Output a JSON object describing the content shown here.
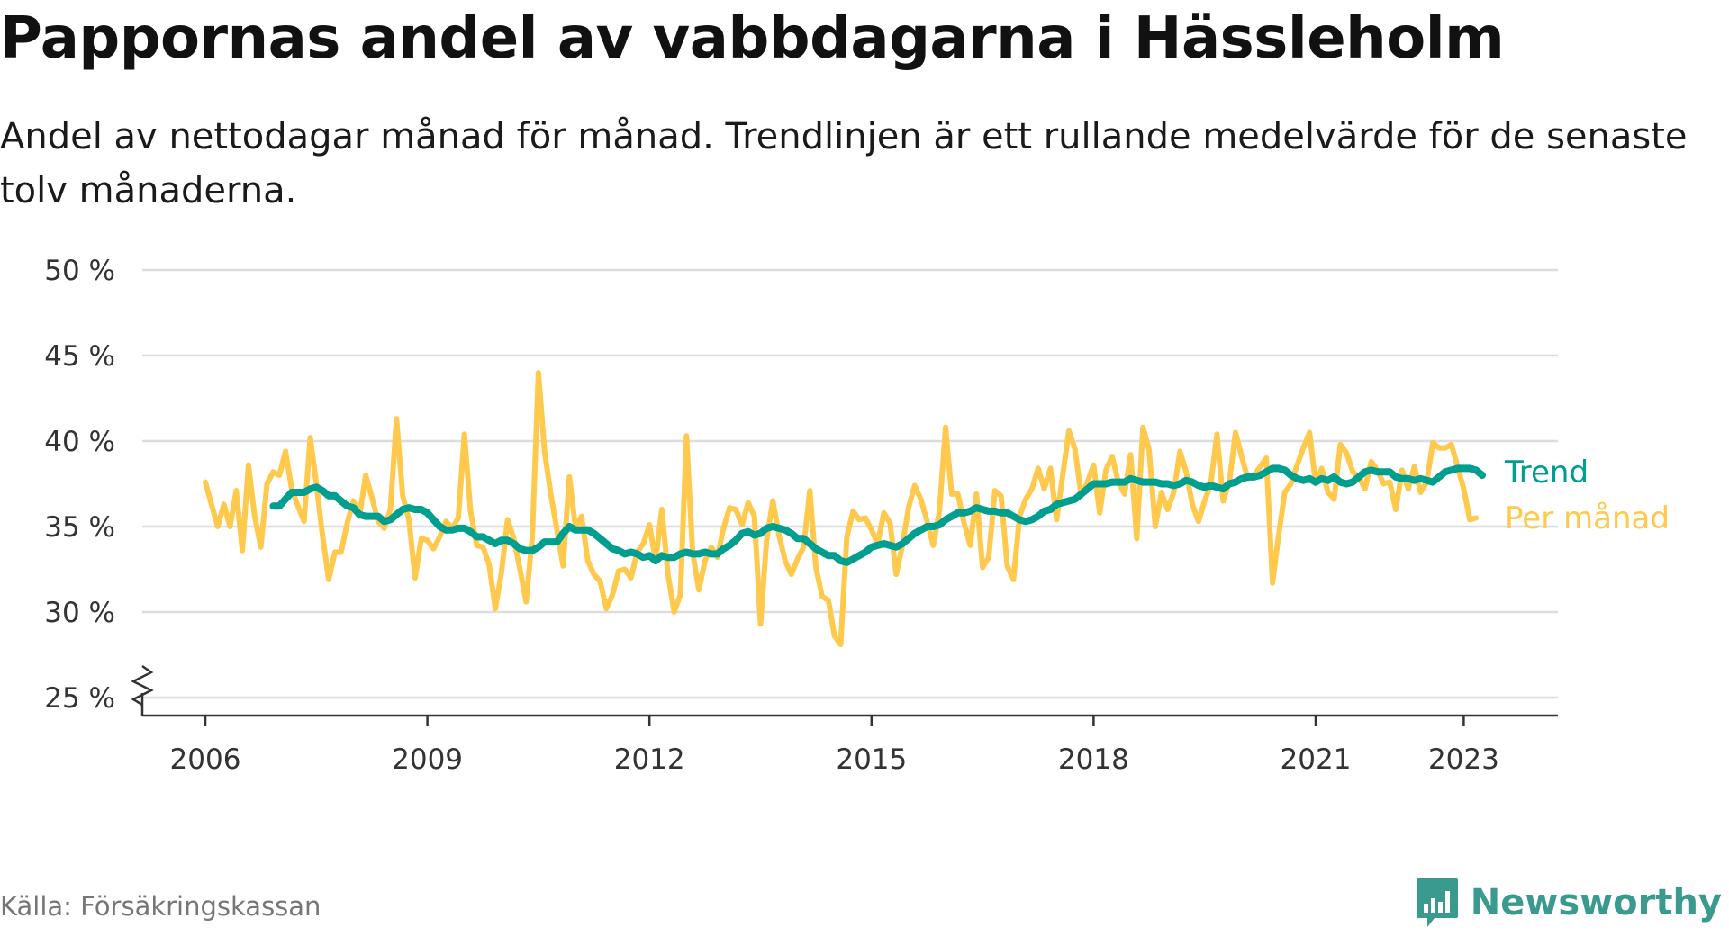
{
  "title": "Pappornas andel av vabbdagarna i Hässleholm",
  "subtitle": "Andel av nettodagar månad för månad. Trendlinjen är ett rullande medelvärde för de senaste tolv månaderna.",
  "source": "Källa: Försäkringskassan",
  "brand": "Newsworthy",
  "colors": {
    "monthly": "#ffc94d",
    "trend": "#009e8e",
    "grid": "#dddddd",
    "axis": "#333333",
    "brand": "#3a9a8e"
  },
  "chart_data": {
    "type": "line",
    "title": "Pappornas andel av vabbdagarna i Hässleholm",
    "xlabel": "",
    "ylabel": "",
    "ylim": [
      25,
      50
    ],
    "y_ticks": [
      50,
      45,
      40,
      35,
      30,
      25
    ],
    "y_tick_labels": [
      "50 %",
      "45 %",
      "40 %",
      "35 %",
      "30 %",
      "25 %"
    ],
    "y_axis_break": true,
    "x_ticks": [
      2006,
      2009,
      2012,
      2015,
      2018,
      2021,
      2023
    ],
    "x_tick_labels": [
      "2006",
      "2009",
      "2012",
      "2015",
      "2018",
      "2021",
      "2023"
    ],
    "x_start": "2006-01",
    "x_end": "2023-05",
    "grid": true,
    "legend": "direct labels at line ends",
    "series": [
      {
        "name": "Per månad",
        "values": [
          37.6,
          36.3,
          35.0,
          36.3,
          35.0,
          37.1,
          33.6,
          38.6,
          35.6,
          33.8,
          37.5,
          38.2,
          38.0,
          39.4,
          37.2,
          36.2,
          35.3,
          40.2,
          37.5,
          34.5,
          31.9,
          33.5,
          33.5,
          35.2,
          36.5,
          35.6,
          38.0,
          36.7,
          35.3,
          34.9,
          36.0,
          41.3,
          36.8,
          35.4,
          32.0,
          34.3,
          34.2,
          33.7,
          34.4,
          35.3,
          34.9,
          35.5,
          40.4,
          35.9,
          33.9,
          33.8,
          32.8,
          30.2,
          32.3,
          35.4,
          34.3,
          32.5,
          30.6,
          34.4,
          44.0,
          39.4,
          36.9,
          34.8,
          32.7,
          37.9,
          35.0,
          35.6,
          33.0,
          32.2,
          31.8,
          30.2,
          31.0,
          32.4,
          32.5,
          32.0,
          33.5,
          34.0,
          35.1,
          33.0,
          36.0,
          32.2,
          30.0,
          31.0,
          40.3,
          33.5,
          31.3,
          33.0,
          33.8,
          33.2,
          34.9,
          36.1,
          36.0,
          35.1,
          36.4,
          35.6,
          29.3,
          34.2,
          36.5,
          34.5,
          33.0,
          32.2,
          33.1,
          33.8,
          37.1,
          32.6,
          30.9,
          30.7,
          28.6,
          28.1,
          34.4,
          35.9,
          35.4,
          35.5,
          34.8,
          34.0,
          35.8,
          35.2,
          32.2,
          33.9,
          36.1,
          37.4,
          36.6,
          35.3,
          33.9,
          35.9,
          40.8,
          36.9,
          36.9,
          35.2,
          33.9,
          36.9,
          32.6,
          33.2,
          37.1,
          36.8,
          32.7,
          31.9,
          35.6,
          36.6,
          37.2,
          38.4,
          37.2,
          38.4,
          35.4,
          38.0,
          40.6,
          39.5,
          36.8,
          37.6,
          38.6,
          35.8,
          38.3,
          39.1,
          37.6,
          36.9,
          39.2,
          34.3,
          40.8,
          39.5,
          35.0,
          37.0,
          36.0,
          37.0,
          39.4,
          38.2,
          36.3,
          35.3,
          36.5,
          37.5,
          40.4,
          36.5,
          37.6,
          40.5,
          39.1,
          37.8,
          38.0,
          38.5,
          39.0,
          31.7,
          34.5,
          37.0,
          37.5,
          38.6,
          39.6,
          40.5,
          37.5,
          38.4,
          37.0,
          36.6,
          39.8,
          39.3,
          38.2,
          37.9,
          37.2,
          38.8,
          38.3,
          37.5,
          37.6,
          36.0,
          38.3,
          37.2,
          38.5,
          37.0,
          37.6,
          39.9,
          39.6,
          39.6,
          39.8,
          38.5,
          37.2,
          35.4,
          35.5
        ]
      },
      {
        "name": "Trend",
        "values": [
          null,
          null,
          null,
          null,
          null,
          null,
          null,
          null,
          null,
          null,
          null,
          36.2,
          36.2,
          36.6,
          37.0,
          37.0,
          37.0,
          37.2,
          37.3,
          37.1,
          36.8,
          36.8,
          36.5,
          36.2,
          36.1,
          35.7,
          35.6,
          35.6,
          35.6,
          35.3,
          35.4,
          35.7,
          36.0,
          36.1,
          36.0,
          36.0,
          35.8,
          35.4,
          35.0,
          34.8,
          34.8,
          34.9,
          34.9,
          34.7,
          34.4,
          34.4,
          34.2,
          34.0,
          34.2,
          34.2,
          34.0,
          33.7,
          33.6,
          33.6,
          33.8,
          34.1,
          34.1,
          34.1,
          34.6,
          35.0,
          34.8,
          34.8,
          34.8,
          34.6,
          34.3,
          34.0,
          33.7,
          33.6,
          33.4,
          33.5,
          33.4,
          33.2,
          33.3,
          33.0,
          33.3,
          33.2,
          33.2,
          33.4,
          33.5,
          33.4,
          33.4,
          33.5,
          33.4,
          33.4,
          33.7,
          33.9,
          34.2,
          34.6,
          34.7,
          34.5,
          34.6,
          34.9,
          35.0,
          34.9,
          34.8,
          34.6,
          34.3,
          34.3,
          34.0,
          33.7,
          33.5,
          33.3,
          33.3,
          33.0,
          32.9,
          33.1,
          33.3,
          33.5,
          33.8,
          33.9,
          34.0,
          33.9,
          33.8,
          34.0,
          34.3,
          34.6,
          34.8,
          35.0,
          35.0,
          35.1,
          35.4,
          35.6,
          35.8,
          35.8,
          35.9,
          36.1,
          36.0,
          35.9,
          35.9,
          35.8,
          35.8,
          35.6,
          35.4,
          35.3,
          35.4,
          35.6,
          35.9,
          36.0,
          36.3,
          36.4,
          36.5,
          36.6,
          36.9,
          37.2,
          37.5,
          37.5,
          37.5,
          37.6,
          37.6,
          37.6,
          37.8,
          37.7,
          37.6,
          37.6,
          37.6,
          37.5,
          37.5,
          37.4,
          37.5,
          37.7,
          37.6,
          37.4,
          37.3,
          37.4,
          37.3,
          37.2,
          37.5,
          37.6,
          37.8,
          37.9,
          37.9,
          38.0,
          38.2,
          38.4,
          38.4,
          38.3,
          38.0,
          37.8,
          37.7,
          37.8,
          37.6,
          37.8,
          37.7,
          37.9,
          37.6,
          37.5,
          37.6,
          37.9,
          38.2,
          38.3,
          38.2,
          38.2,
          38.2,
          37.9,
          37.8,
          37.8,
          37.7,
          37.8,
          37.7,
          37.6,
          37.9,
          38.2,
          38.3,
          38.4,
          38.4,
          38.4,
          38.3,
          38.0
        ]
      }
    ]
  }
}
